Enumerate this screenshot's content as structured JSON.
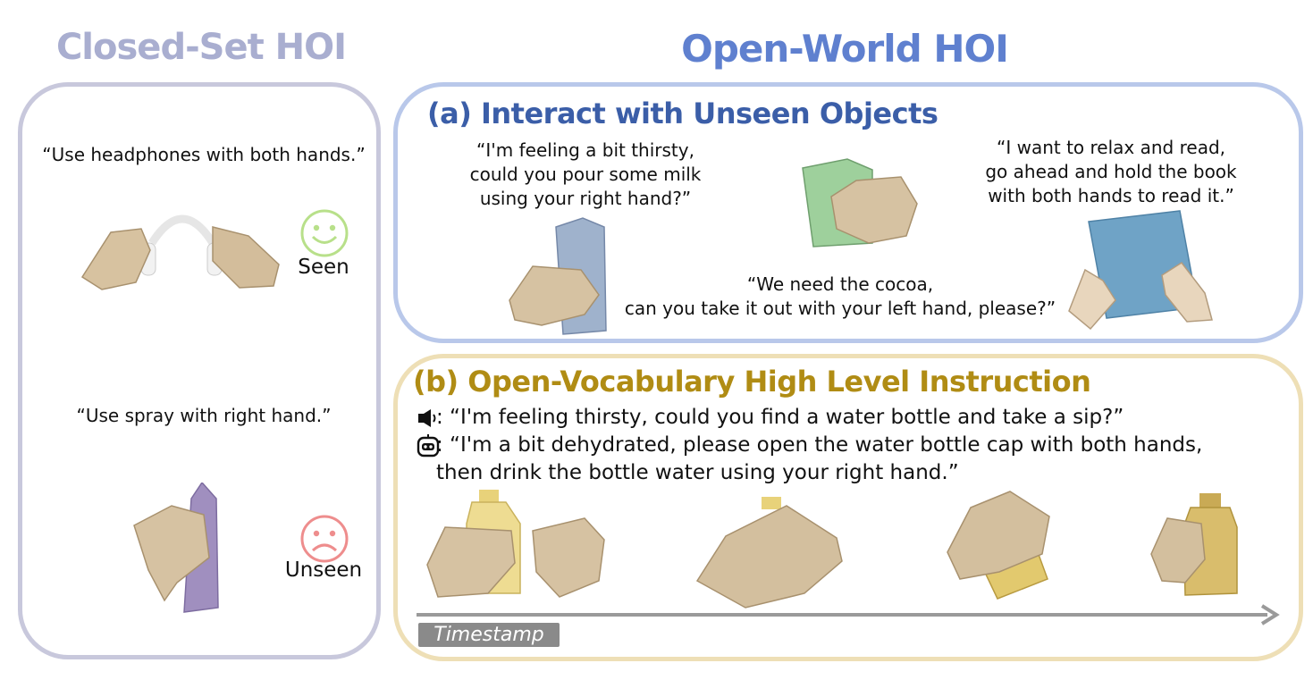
{
  "headers": {
    "closed_set": "Closed-Set HOI",
    "open_world": "Open-World HOI"
  },
  "closed_set": {
    "seen_instruction": "“Use headphones with both hands.”",
    "seen_label": "Seen",
    "unseen_instruction": "“Use spray with right hand.”",
    "unseen_label": "Unseen"
  },
  "section_a": {
    "title": "(a) Interact with Unseen Objects",
    "quote_milk": "“I'm feeling a bit thirsty,\ncould you pour some milk\nusing your right hand?”",
    "quote_book": "“I want to relax and read,\ngo ahead and hold the book\nwith both hands to read it.”",
    "quote_cocoa": "“We need the cocoa,\ncan you take it out with your left hand, please?”"
  },
  "section_b": {
    "title": "(b) Open-Vocabulary High Level Instruction",
    "user_line": ":  “I'm feeling thirsty, could you find a water bottle and take a sip?”",
    "robot_line": ":  “I'm a bit dehydrated,  please open the water bottle cap with both hands,\n    then drink the bottle water using your right hand.”",
    "timeline_label": "Timestamp"
  },
  "colors": {
    "closed_title": "#a9aed0",
    "open_title": "#5f80cf",
    "section_a_title": "#3b5ea8",
    "section_b_title": "#b08c14",
    "seen_face": "#b8e08a",
    "unseen_face": "#ee8d8d"
  }
}
